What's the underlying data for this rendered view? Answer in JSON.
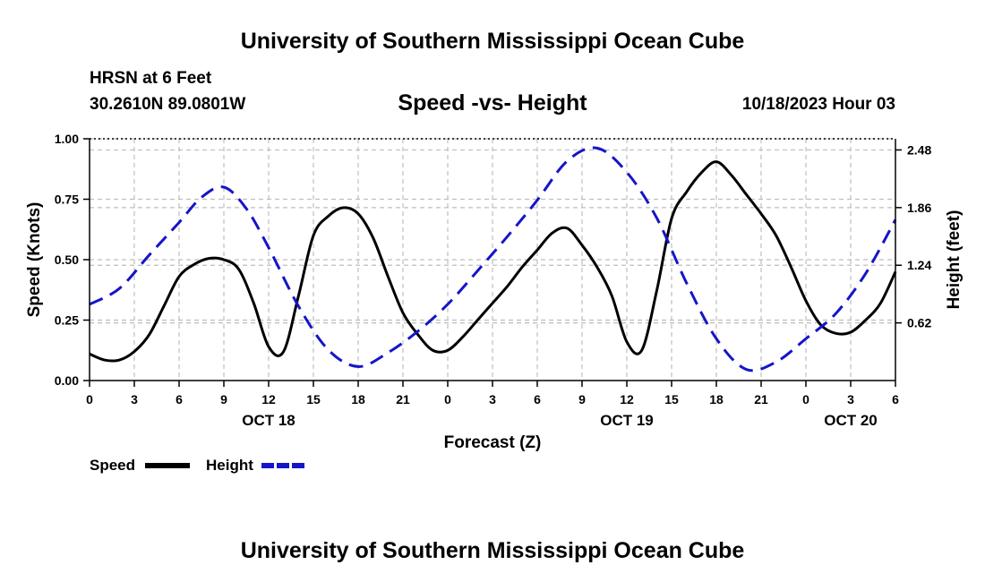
{
  "header": {
    "title": "University of Southern Mississippi Ocean Cube",
    "station_name": "HRSN at 6 Feet",
    "station_coords": "30.2610N  89.0801W",
    "subtitle": "Speed -vs- Height",
    "run_time": "10/18/2023 Hour 03"
  },
  "footer": {
    "title": "University of Southern Mississippi Ocean Cube"
  },
  "legend": {
    "speed_label": "Speed",
    "height_label": "Height"
  },
  "colors": {
    "speed": "#000000",
    "height": "#1515c8",
    "grid": "#bdbdbd"
  },
  "chart_data": {
    "type": "line",
    "title": "Speed -vs- Height",
    "xlabel": "Forecast (Z)",
    "ylabel": "Speed (Knots)",
    "y2label": "Height (feet)",
    "xlim": [
      0,
      54
    ],
    "ylim": [
      0,
      1.0
    ],
    "y2lim": [
      0.0,
      2.6
    ],
    "x_ticks": [
      0,
      3,
      6,
      9,
      12,
      15,
      18,
      21,
      24,
      27,
      30,
      33,
      36,
      39,
      42,
      45,
      48,
      51,
      54
    ],
    "x_tick_labels": [
      "0",
      "3",
      "6",
      "9",
      "12",
      "15",
      "18",
      "21",
      "0",
      "3",
      "6",
      "9",
      "12",
      "15",
      "18",
      "21",
      "0",
      "3",
      "6"
    ],
    "y_ticks": [
      "0.00",
      "0.25",
      "0.50",
      "0.75",
      "1.00"
    ],
    "y2_ticks": [
      "0.62",
      "1.24",
      "1.86",
      "2.48"
    ],
    "day_labels": [
      {
        "x": 12,
        "label": "OCT 18"
      },
      {
        "x": 36,
        "label": "OCT 19"
      },
      {
        "x": 51,
        "label": "OCT 20"
      }
    ],
    "grid": true,
    "legend_position": "bottom-left",
    "series": [
      {
        "name": "Speed",
        "axis": "left",
        "x": [
          0,
          1,
          2,
          3,
          4,
          5,
          6,
          7,
          8,
          9,
          10,
          11,
          12,
          13,
          14,
          15,
          16,
          17,
          18,
          19,
          20,
          21,
          22,
          23,
          24,
          25,
          26,
          27,
          28,
          29,
          30,
          31,
          32,
          33,
          34,
          35,
          36,
          37,
          38,
          39,
          40,
          41,
          42,
          43,
          44,
          45,
          46,
          47,
          48,
          49,
          50,
          51,
          52,
          53,
          54
        ],
        "values": [
          0.11,
          0.085,
          0.085,
          0.12,
          0.19,
          0.31,
          0.43,
          0.48,
          0.505,
          0.5,
          0.46,
          0.32,
          0.14,
          0.12,
          0.35,
          0.6,
          0.68,
          0.715,
          0.69,
          0.59,
          0.43,
          0.28,
          0.19,
          0.125,
          0.125,
          0.18,
          0.25,
          0.32,
          0.39,
          0.47,
          0.54,
          0.61,
          0.63,
          0.56,
          0.47,
          0.35,
          0.16,
          0.125,
          0.37,
          0.67,
          0.78,
          0.86,
          0.905,
          0.85,
          0.77,
          0.69,
          0.6,
          0.47,
          0.33,
          0.23,
          0.195,
          0.2,
          0.25,
          0.32,
          0.45
        ]
      },
      {
        "name": "Height",
        "axis": "right",
        "x": [
          0,
          2,
          4,
          6,
          7.5,
          9,
          10.5,
          12,
          14,
          16,
          18,
          20,
          22,
          24,
          26,
          28,
          30,
          32,
          34,
          36,
          38,
          40,
          42,
          44,
          46,
          48,
          50,
          52,
          54
        ],
        "values": [
          0.82,
          0.99,
          1.35,
          1.7,
          1.97,
          2.08,
          1.85,
          1.43,
          0.8,
          0.33,
          0.15,
          0.3,
          0.53,
          0.82,
          1.18,
          1.55,
          1.94,
          2.36,
          2.5,
          2.24,
          1.75,
          1.05,
          0.45,
          0.12,
          0.2,
          0.45,
          0.72,
          1.15,
          1.73
        ]
      }
    ]
  }
}
